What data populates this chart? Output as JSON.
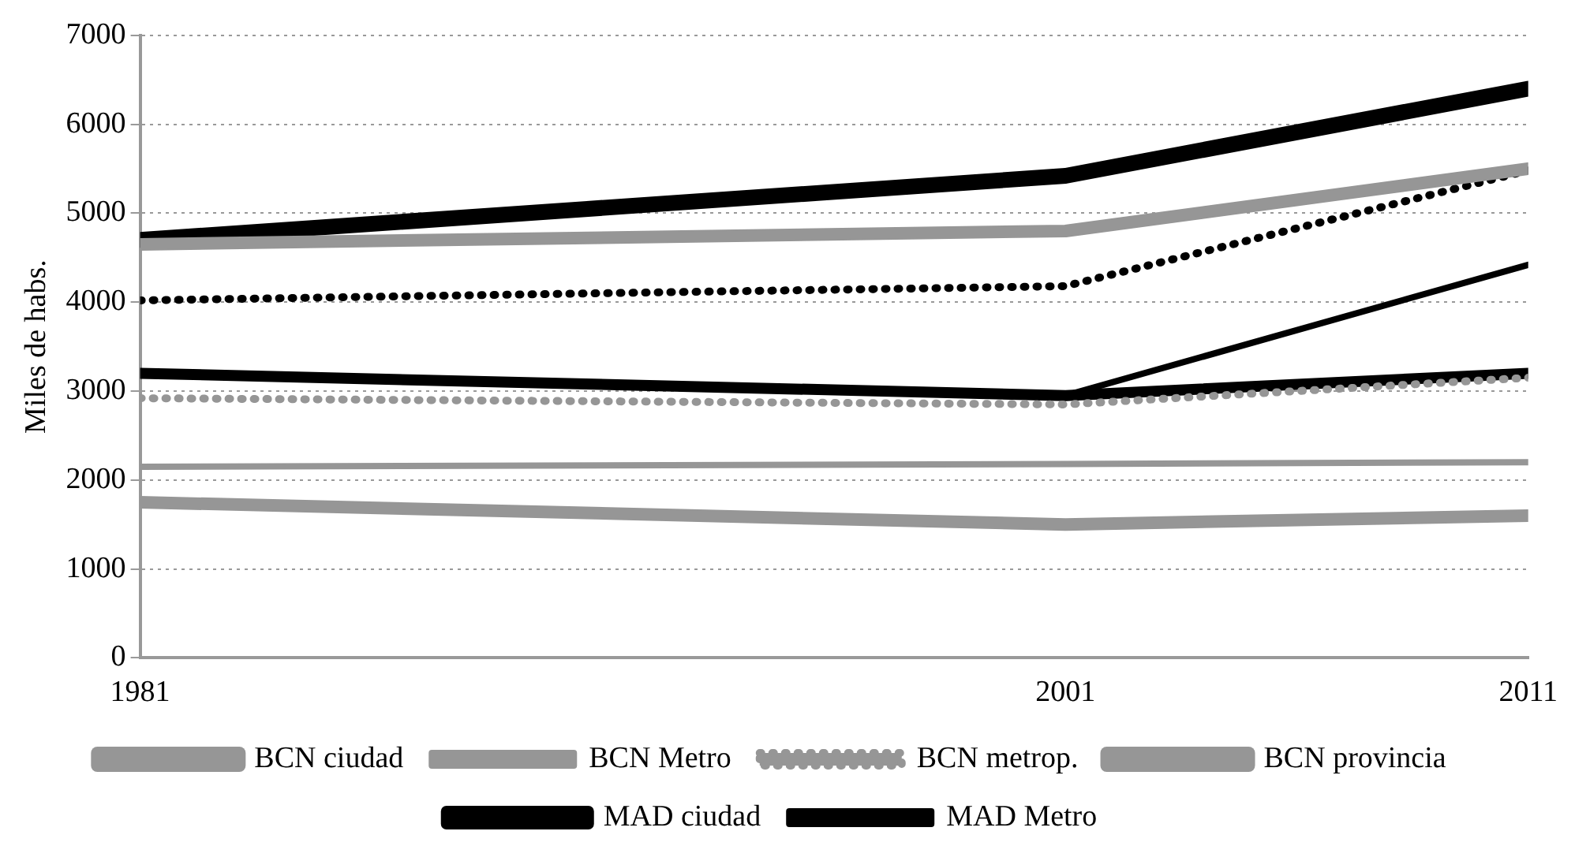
{
  "chart_data": {
    "type": "line",
    "ylabel": "Miles de habs.",
    "x": [
      1981,
      2001,
      2011
    ],
    "xlim": [
      1981,
      2011
    ],
    "xticks": [
      1981,
      2001,
      2011
    ],
    "ylim": [
      0,
      7000
    ],
    "yticks": [
      0,
      1000,
      2000,
      3000,
      4000,
      5000,
      6000,
      7000
    ],
    "grid": "y",
    "legend": "bottom",
    "marker": "none",
    "series": [
      {
        "name": "BCN ciudad",
        "color": "#969696",
        "values": [
          1750,
          1500,
          1600
        ]
      },
      {
        "name": "BCN Metro",
        "color": "#969696",
        "values": [
          2150,
          2180,
          2200
        ]
      },
      {
        "name": "BCN metrop.",
        "color": "#969696",
        "values": [
          2920,
          2850,
          3150
        ],
        "line_style": "dotted"
      },
      {
        "name": "BCN provincia",
        "color": "#969696",
        "values": [
          4650,
          4800,
          5500
        ]
      },
      {
        "name": "MAD ciudad",
        "color": "#000000",
        "values": [
          3200,
          2950,
          3200
        ]
      },
      {
        "name": "MAD Metro",
        "color": "#000000",
        "values": [
          null,
          2950,
          4420
        ]
      },
      {
        "color": "#000000",
        "values": [
          4020,
          4180,
          5480
        ],
        "line_style": "dotted"
      },
      {
        "color": "#000000",
        "values": [
          4700,
          5420,
          6400
        ]
      }
    ]
  }
}
